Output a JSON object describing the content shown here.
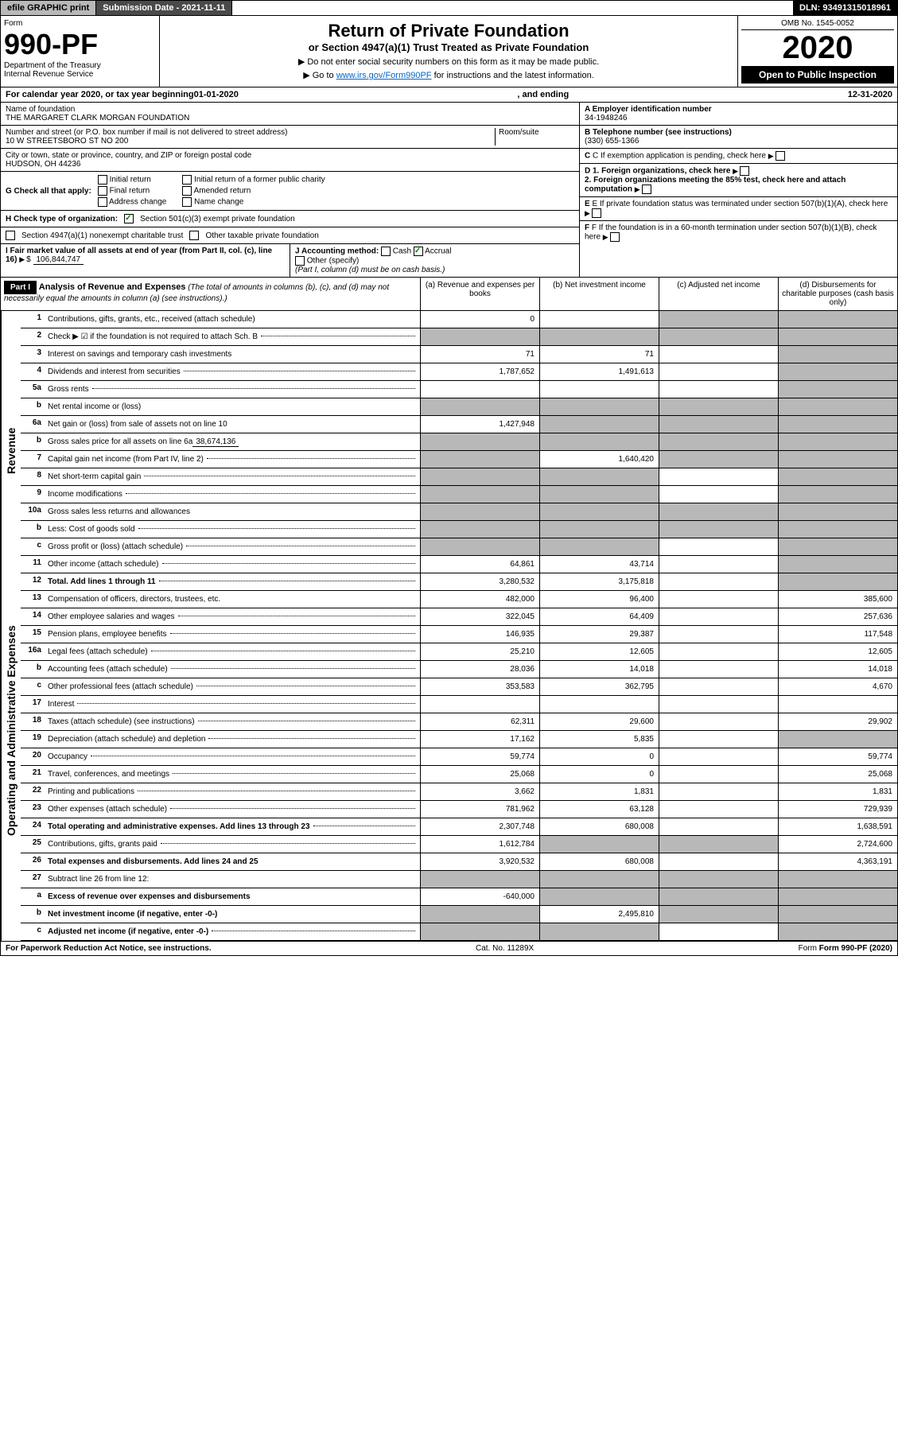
{
  "top": {
    "efile": "efile GRAPHIC print",
    "sub_date": "Submission Date - 2021-11-11",
    "dln": "DLN: 93491315018961"
  },
  "header": {
    "form_label": "Form",
    "form_num": "990-PF",
    "dept": "Department of the Treasury",
    "irs": "Internal Revenue Service",
    "title": "Return of Private Foundation",
    "subtitle": "or Section 4947(a)(1) Trust Treated as Private Foundation",
    "note1": "▶ Do not enter social security numbers on this form as it may be made public.",
    "note2_pre": "▶ Go to ",
    "note2_link": "www.irs.gov/Form990PF",
    "note2_post": " for instructions and the latest information.",
    "omb": "OMB No. 1545-0052",
    "year": "2020",
    "open": "Open to Public Inspection"
  },
  "calendar": {
    "pre": "For calendar year 2020, or tax year beginning ",
    "begin": "01-01-2020",
    "mid": " , and ending ",
    "end": "12-31-2020"
  },
  "info": {
    "name_label": "Name of foundation",
    "name": "THE MARGARET CLARK MORGAN FOUNDATION",
    "addr_label": "Number and street (or P.O. box number if mail is not delivered to street address)",
    "addr": "10 W STREETSBORO ST NO 200",
    "room_label": "Room/suite",
    "city_label": "City or town, state or province, country, and ZIP or foreign postal code",
    "city": "HUDSON, OH  44236",
    "a_label": "A Employer identification number",
    "a_val": "34-1948246",
    "b_label": "B Telephone number (see instructions)",
    "b_val": "(330) 655-1366",
    "c_label": "C If exemption application is pending, check here",
    "d1": "D 1. Foreign organizations, check here",
    "d2": "2. Foreign organizations meeting the 85% test, check here and attach computation",
    "e": "E If private foundation status was terminated under section 507(b)(1)(A), check here",
    "f": "F If the foundation is in a 60-month termination under section 507(b)(1)(B), check here"
  },
  "g": {
    "label": "G Check all that apply:",
    "opts": [
      "Initial return",
      "Final return",
      "Address change",
      "Initial return of a former public charity",
      "Amended return",
      "Name change"
    ]
  },
  "h": {
    "label": "H Check type of organization:",
    "opt1": "Section 501(c)(3) exempt private foundation",
    "opt2": "Section 4947(a)(1) nonexempt charitable trust",
    "opt3": "Other taxable private foundation"
  },
  "i": {
    "label": "I Fair market value of all assets at end of year (from Part II, col. (c), line 16)",
    "val": "106,844,747"
  },
  "j": {
    "label": "J Accounting method:",
    "cash": "Cash",
    "accrual": "Accrual",
    "other": "Other (specify)",
    "note": "(Part I, column (d) must be on cash basis.)"
  },
  "part1": {
    "label": "Part I",
    "title": "Analysis of Revenue and Expenses",
    "sub": " (The total of amounts in columns (b), (c), and (d) may not necessarily equal the amounts in column (a) (see instructions).)",
    "cols": [
      "(a) Revenue and expenses per books",
      "(b) Net investment income",
      "(c) Adjusted net income",
      "(d) Disbursements for charitable purposes (cash basis only)"
    ]
  },
  "sections": {
    "revenue": "Revenue",
    "expenses": "Operating and Administrative Expenses"
  },
  "rows": [
    {
      "n": "1",
      "l": "Contributions, gifts, grants, etc., received (attach schedule)",
      "a": "0",
      "b": "",
      "c": "g",
      "d": "g"
    },
    {
      "n": "2",
      "l": "Check ▶ ☑ if the foundation is not required to attach Sch. B",
      "a": "g",
      "b": "g",
      "c": "g",
      "d": "g",
      "dotted": true
    },
    {
      "n": "3",
      "l": "Interest on savings and temporary cash investments",
      "a": "71",
      "b": "71",
      "c": "",
      "d": "g"
    },
    {
      "n": "4",
      "l": "Dividends and interest from securities",
      "a": "1,787,652",
      "b": "1,491,613",
      "c": "",
      "d": "g",
      "dotted": true
    },
    {
      "n": "5a",
      "l": "Gross rents",
      "a": "",
      "b": "",
      "c": "",
      "d": "g",
      "dotted": true
    },
    {
      "n": "b",
      "l": "Net rental income or (loss)",
      "a": "g",
      "b": "g",
      "c": "g",
      "d": "g",
      "inline": true
    },
    {
      "n": "6a",
      "l": "Net gain or (loss) from sale of assets not on line 10",
      "a": "1,427,948",
      "b": "g",
      "c": "g",
      "d": "g"
    },
    {
      "n": "b",
      "l": "Gross sales price for all assets on line 6a",
      "a": "g",
      "b": "g",
      "c": "g",
      "d": "g",
      "inline": true,
      "inline_val": "38,674,136"
    },
    {
      "n": "7",
      "l": "Capital gain net income (from Part IV, line 2)",
      "a": "g",
      "b": "1,640,420",
      "c": "g",
      "d": "g",
      "dotted": true
    },
    {
      "n": "8",
      "l": "Net short-term capital gain",
      "a": "g",
      "b": "g",
      "c": "",
      "d": "g",
      "dotted": true
    },
    {
      "n": "9",
      "l": "Income modifications",
      "a": "g",
      "b": "g",
      "c": "",
      "d": "g",
      "dotted": true
    },
    {
      "n": "10a",
      "l": "Gross sales less returns and allowances",
      "a": "g",
      "b": "g",
      "c": "g",
      "d": "g",
      "inline": true
    },
    {
      "n": "b",
      "l": "Less: Cost of goods sold",
      "a": "g",
      "b": "g",
      "c": "g",
      "d": "g",
      "inline": true,
      "dotted": true
    },
    {
      "n": "c",
      "l": "Gross profit or (loss) (attach schedule)",
      "a": "g",
      "b": "g",
      "c": "",
      "d": "g",
      "dotted": true
    },
    {
      "n": "11",
      "l": "Other income (attach schedule)",
      "a": "64,861",
      "b": "43,714",
      "c": "",
      "d": "g",
      "dotted": true
    },
    {
      "n": "12",
      "l": "Total. Add lines 1 through 11",
      "a": "3,280,532",
      "b": "3,175,818",
      "c": "",
      "d": "g",
      "bold": true,
      "dotted": true
    }
  ],
  "exp_rows": [
    {
      "n": "13",
      "l": "Compensation of officers, directors, trustees, etc.",
      "a": "482,000",
      "b": "96,400",
      "c": "",
      "d": "385,600"
    },
    {
      "n": "14",
      "l": "Other employee salaries and wages",
      "a": "322,045",
      "b": "64,409",
      "c": "",
      "d": "257,636",
      "dotted": true
    },
    {
      "n": "15",
      "l": "Pension plans, employee benefits",
      "a": "146,935",
      "b": "29,387",
      "c": "",
      "d": "117,548",
      "dotted": true
    },
    {
      "n": "16a",
      "l": "Legal fees (attach schedule)",
      "a": "25,210",
      "b": "12,605",
      "c": "",
      "d": "12,605",
      "dotted": true
    },
    {
      "n": "b",
      "l": "Accounting fees (attach schedule)",
      "a": "28,036",
      "b": "14,018",
      "c": "",
      "d": "14,018",
      "dotted": true
    },
    {
      "n": "c",
      "l": "Other professional fees (attach schedule)",
      "a": "353,583",
      "b": "362,795",
      "c": "",
      "d": "4,670",
      "dotted": true
    },
    {
      "n": "17",
      "l": "Interest",
      "a": "",
      "b": "",
      "c": "",
      "d": "",
      "dotted": true
    },
    {
      "n": "18",
      "l": "Taxes (attach schedule) (see instructions)",
      "a": "62,311",
      "b": "29,600",
      "c": "",
      "d": "29,902",
      "dotted": true
    },
    {
      "n": "19",
      "l": "Depreciation (attach schedule) and depletion",
      "a": "17,162",
      "b": "5,835",
      "c": "",
      "d": "g",
      "dotted": true
    },
    {
      "n": "20",
      "l": "Occupancy",
      "a": "59,774",
      "b": "0",
      "c": "",
      "d": "59,774",
      "dotted": true
    },
    {
      "n": "21",
      "l": "Travel, conferences, and meetings",
      "a": "25,068",
      "b": "0",
      "c": "",
      "d": "25,068",
      "dotted": true
    },
    {
      "n": "22",
      "l": "Printing and publications",
      "a": "3,662",
      "b": "1,831",
      "c": "",
      "d": "1,831",
      "dotted": true
    },
    {
      "n": "23",
      "l": "Other expenses (attach schedule)",
      "a": "781,962",
      "b": "63,128",
      "c": "",
      "d": "729,939",
      "dotted": true
    },
    {
      "n": "24",
      "l": "Total operating and administrative expenses. Add lines 13 through 23",
      "a": "2,307,748",
      "b": "680,008",
      "c": "",
      "d": "1,638,591",
      "bold": true,
      "dotted": true
    },
    {
      "n": "25",
      "l": "Contributions, gifts, grants paid",
      "a": "1,612,784",
      "b": "g",
      "c": "g",
      "d": "2,724,600",
      "dotted": true
    },
    {
      "n": "26",
      "l": "Total expenses and disbursements. Add lines 24 and 25",
      "a": "3,920,532",
      "b": "680,008",
      "c": "",
      "d": "4,363,191",
      "bold": true
    }
  ],
  "final_rows": [
    {
      "n": "27",
      "l": "Subtract line 26 from line 12:",
      "a": "g",
      "b": "g",
      "c": "g",
      "d": "g"
    },
    {
      "n": "a",
      "l": "Excess of revenue over expenses and disbursements",
      "a": "-640,000",
      "b": "g",
      "c": "g",
      "d": "g",
      "bold": true
    },
    {
      "n": "b",
      "l": "Net investment income (if negative, enter -0-)",
      "a": "g",
      "b": "2,495,810",
      "c": "g",
      "d": "g",
      "bold": true
    },
    {
      "n": "c",
      "l": "Adjusted net income (if negative, enter -0-)",
      "a": "g",
      "b": "g",
      "c": "",
      "d": "g",
      "bold": true,
      "dotted": true
    }
  ],
  "footer": {
    "left": "For Paperwork Reduction Act Notice, see instructions.",
    "mid": "Cat. No. 11289X",
    "right": "Form 990-PF (2020)"
  }
}
